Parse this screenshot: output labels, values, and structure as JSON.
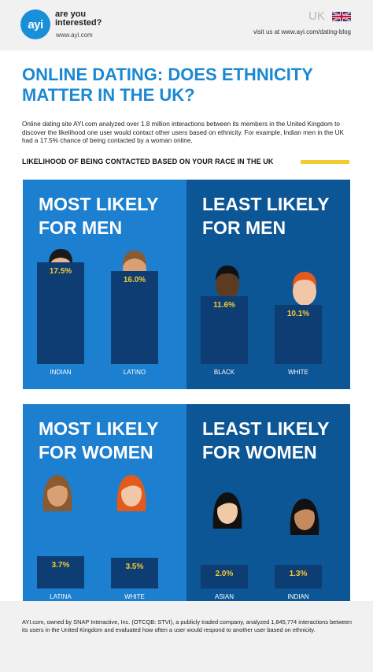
{
  "header": {
    "logo_mark": "ayi",
    "logo_line1": "are you",
    "logo_line2": "interested?",
    "logo_url": "www.ayi.com",
    "country": "UK",
    "visit_text": "visit us at www.ayi.com/dating-blog"
  },
  "title": "ONLINE DATING: DOES ETHNICITY MATTER IN THE UK?",
  "intro": "Online dating site AYI.com analyzed over 1.8 million interactions between its members in the United Kingdom to discover the likelihood one user would contact other users based on ethnicity. For example, Indian men in the UK had a 17.5% chance of being contacted by a woman online.",
  "section_heading": "LIKELIHOOD OF BEING CONTACTED BASED ON YOUR RACE IN THE UK",
  "colors": {
    "accent": "#1b88d3",
    "panel_light": "#1c7fcf",
    "panel_dark": "#0d5696",
    "bar": "#0e3d74",
    "value": "#f3cb31"
  },
  "icons": [
    "man-dark-hair-icon",
    "man-brown-hair-icon",
    "man-black-skin-icon",
    "man-red-hair-icon",
    "woman-brown-hair-icon",
    "woman-red-hair-icon",
    "woman-black-hair-icon",
    "uk-flag-icon"
  ],
  "chart_data": [
    {
      "type": "bar",
      "title": "MOST LIKELY FOR MEN",
      "categories": [
        "INDIAN",
        "LATINO"
      ],
      "values": [
        17.5,
        16.0
      ],
      "value_labels": [
        "17.5%",
        "16.0%"
      ]
    },
    {
      "type": "bar",
      "title": "LEAST LIKELY FOR MEN",
      "categories": [
        "BLACK",
        "WHITE"
      ],
      "values": [
        11.6,
        10.1
      ],
      "value_labels": [
        "11.6%",
        "10.1%"
      ]
    },
    {
      "type": "bar",
      "title": "MOST LIKELY FOR WOMEN",
      "categories": [
        "LATINA",
        "WHITE"
      ],
      "values": [
        3.7,
        3.5
      ],
      "value_labels": [
        "3.7%",
        "3.5%"
      ]
    },
    {
      "type": "bar",
      "title": "LEAST LIKELY FOR WOMEN",
      "categories": [
        "ASIAN",
        "INDIAN"
      ],
      "values": [
        2.0,
        1.3
      ],
      "value_labels": [
        "2.0%",
        "1.3%"
      ]
    }
  ],
  "footer": "AYI.com, owned by SNAP Interactive, Inc. (OTCQB: STVI), a publicly traded company, analyzed 1,845,774 interactions between its users in the United Kingdom and evaluated how often a user would respond to another user based on ethnicity."
}
